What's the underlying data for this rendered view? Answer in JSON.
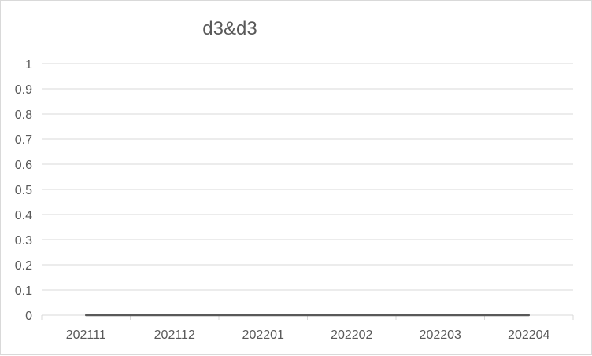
{
  "chart_data": {
    "type": "line",
    "title": "d3&d3",
    "categories": [
      "202111",
      "202112",
      "202201",
      "202202",
      "202203",
      "202204"
    ],
    "series": [
      {
        "values": [
          0,
          0,
          0,
          0,
          0,
          0
        ]
      }
    ],
    "ylim": [
      0,
      1
    ],
    "yticks": [
      "0",
      "0.1",
      "0.2",
      "0.3",
      "0.4",
      "0.5",
      "0.6",
      "0.7",
      "0.8",
      "0.9",
      "1"
    ],
    "grid": true,
    "legend": "none",
    "colors": {
      "line": "#595959",
      "grid": "#d9d9d9",
      "axis": "#d9d9d9",
      "text": "#595959"
    }
  }
}
